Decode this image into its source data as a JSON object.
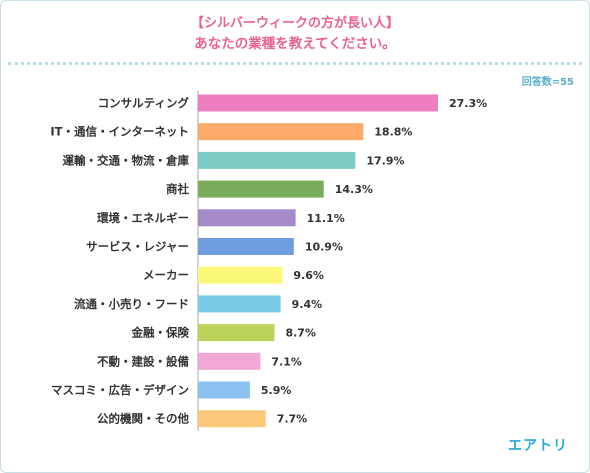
{
  "header": {
    "title_line1": "【シルバーウィークの方が長い人】",
    "title_line2": "あなたの業種を教えてください。",
    "respondents": "回答数=55"
  },
  "brand": "エアトリ",
  "chart_data": {
    "type": "bar",
    "orientation": "horizontal",
    "categories": [
      "コンサルティング",
      "IT・通信・インターネット",
      "運輸・交通・物流・倉庫",
      "商社",
      "環境・エネルギー",
      "サービス・レジャー",
      "メーカー",
      "流通・小売り・フード",
      "金融・保険",
      "不動・建設・設備",
      "マスコミ・広告・デザイン",
      "公的機関・その他"
    ],
    "values": [
      27.3,
      18.8,
      17.9,
      14.3,
      11.1,
      10.9,
      9.6,
      9.4,
      8.7,
      7.1,
      5.9,
      7.7
    ],
    "value_labels": [
      "27.3%",
      "18.8%",
      "17.9%",
      "14.3%",
      "11.1%",
      "10.9%",
      "9.6%",
      "9.4%",
      "8.7%",
      "7.1%",
      "5.9%",
      "7.7%"
    ],
    "colors": [
      "#ef7ec0",
      "#fdaa6a",
      "#7dcdc4",
      "#79ad5b",
      "#a48ac6",
      "#6f9ee0",
      "#fbf87a",
      "#7ccbe6",
      "#bcd35b",
      "#f2a8d6",
      "#8cc2f1",
      "#fcc97b"
    ],
    "xlim": [
      0,
      27.3
    ],
    "grid": false
  }
}
